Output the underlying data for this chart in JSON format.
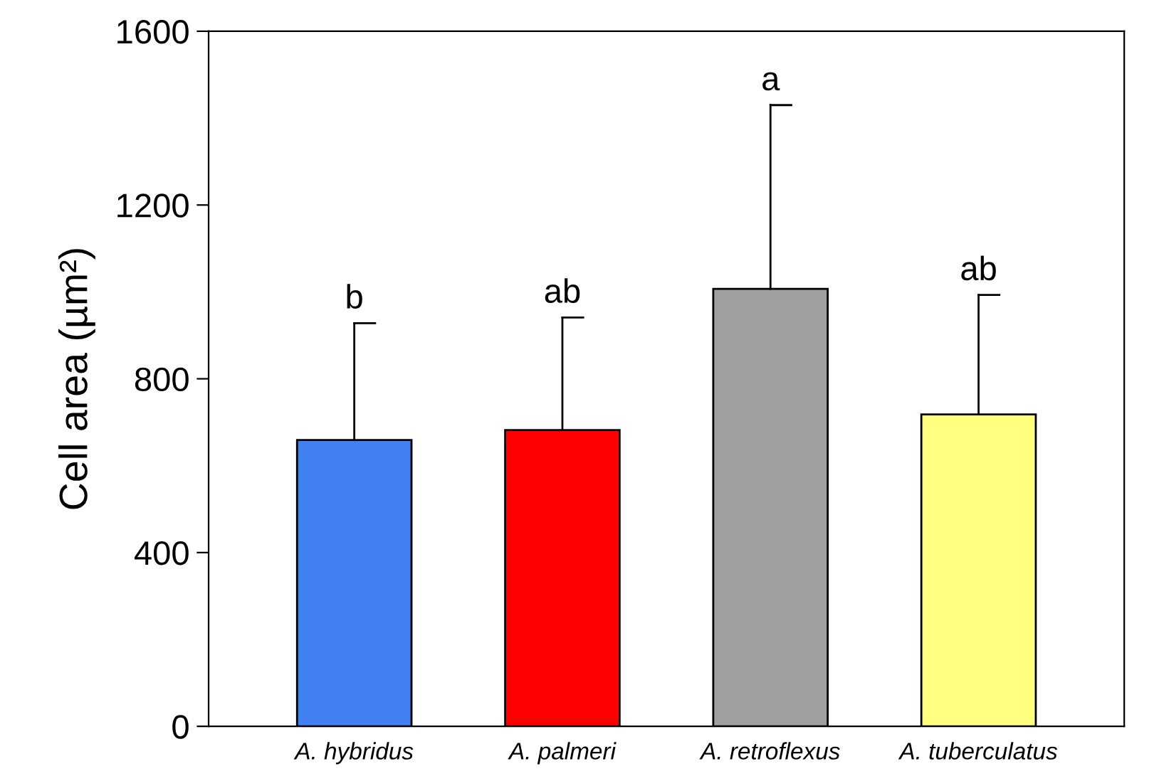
{
  "chart_data": {
    "type": "bar",
    "ylabel": "Cell area (µm²)",
    "categories": [
      "A. hybridus",
      "A. palmeri",
      "A. retroflexus",
      "A. tuberculatus"
    ],
    "values": [
      659,
      682,
      1007,
      718
    ],
    "colors": [
      "#4080f0",
      "#ff0000",
      "#a0a0a0",
      "#ffff80"
    ],
    "errors": [
      [
        659,
        928
      ],
      [
        682,
        941
      ],
      [
        1007,
        1430
      ],
      [
        718,
        993
      ]
    ],
    "annotations": [
      {
        "text": "b",
        "x": "A. hybridus",
        "y": 928
      },
      {
        "text": "ab",
        "x": "A. palmeri",
        "y": 941
      },
      {
        "text": "a",
        "x": "A. retroflexus",
        "y": 1430
      },
      {
        "text": "ab",
        "x": "A. tuberculatus",
        "y": 993
      }
    ],
    "ylim": [
      0,
      1600
    ],
    "yticks": [
      0,
      400,
      800,
      1200,
      1600
    ],
    "grid": false,
    "legend": false
  }
}
